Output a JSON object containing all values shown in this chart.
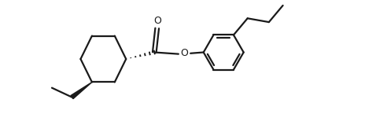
{
  "bg_color": "#ffffff",
  "line_color": "#1a1a1a",
  "line_width": 1.6,
  "figsize": [
    4.92,
    1.5
  ],
  "dpi": 100,
  "xlim": [
    0,
    10
  ],
  "ylim": [
    0,
    3.5
  ]
}
